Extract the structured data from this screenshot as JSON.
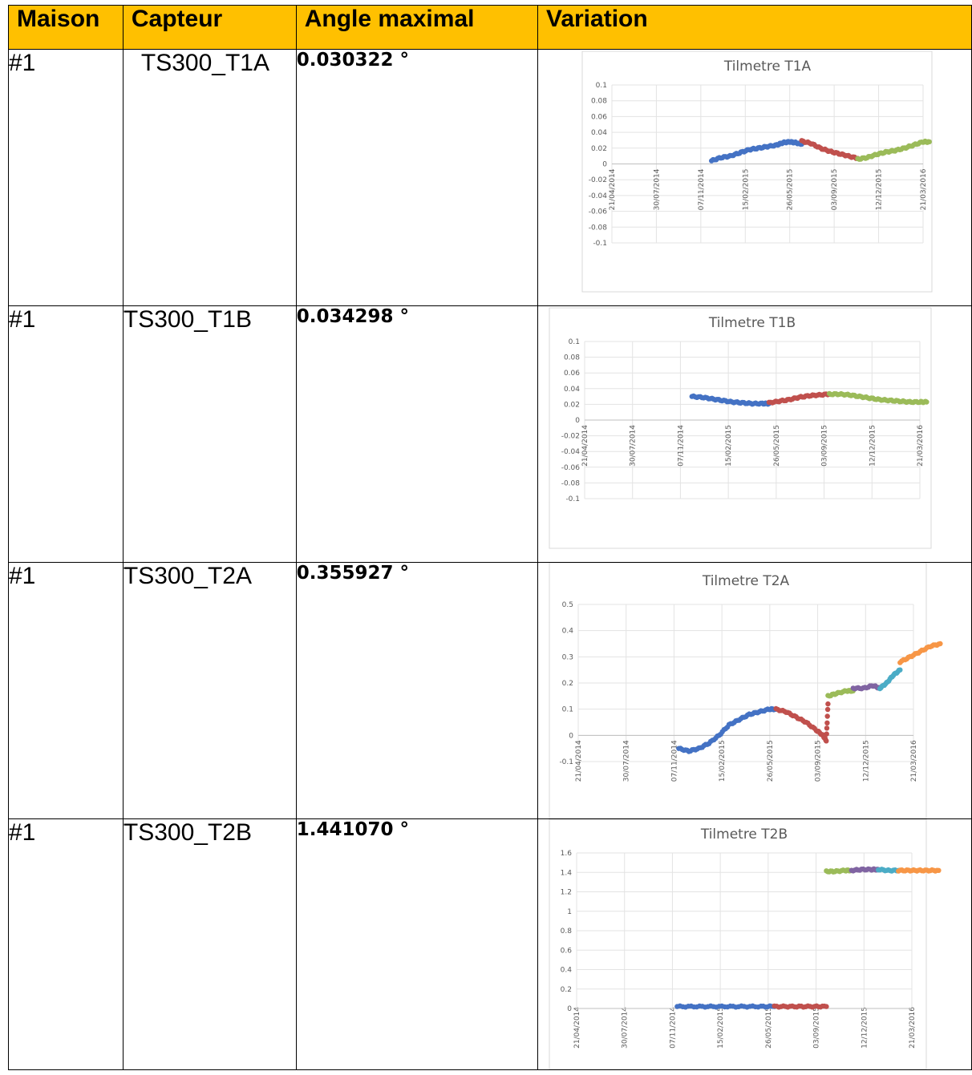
{
  "headers": {
    "maison": "Maison",
    "capteur": "Capteur",
    "angle": "Angle maximal",
    "variation": "Variation"
  },
  "rows": [
    {
      "maison": "#1",
      "capteur": "TS300_T1A",
      "angle": "0.030322 °"
    },
    {
      "maison": "#1",
      "capteur": "TS300_T1B",
      "angle": "0.034298 °"
    },
    {
      "maison": "#1",
      "capteur": "TS300_T2A",
      "angle": "0.355927 °"
    },
    {
      "maison": "#1",
      "capteur": "TS300_T2B",
      "angle": "1.441070 °"
    }
  ],
  "chart_data": [
    {
      "type": "scatter",
      "title": "Tilmetre T1A",
      "x_tick_labels": [
        "21/04/2014",
        "30/07/2014",
        "07/11/2014",
        "15/02/2015",
        "26/05/2015",
        "03/09/2015",
        "12/12/2015",
        "21/03/2016"
      ],
      "y_tick_labels": [
        "0.1",
        "0.08",
        "0.06",
        "0.04",
        "0.02",
        "0",
        "-0.02",
        "-0.04",
        "-0.06",
        "-0.08",
        "-0.1"
      ],
      "ylim": [
        -0.1,
        0.1
      ],
      "grid": true,
      "series": [
        {
          "color": "#4472c4",
          "points": [
            [
              0.32,
              0.004
            ],
            [
              0.35,
              0.008
            ],
            [
              0.38,
              0.01
            ],
            [
              0.41,
              0.014
            ],
            [
              0.44,
              0.018
            ],
            [
              0.47,
              0.02
            ],
            [
              0.5,
              0.022
            ],
            [
              0.53,
              0.024
            ],
            [
              0.55,
              0.027
            ],
            [
              0.57,
              0.028
            ],
            [
              0.59,
              0.027
            ],
            [
              0.61,
              0.025
            ]
          ]
        },
        {
          "color": "#c0504d",
          "points": [
            [
              0.61,
              0.029
            ],
            [
              0.64,
              0.026
            ],
            [
              0.67,
              0.02
            ],
            [
              0.7,
              0.016
            ],
            [
              0.73,
              0.013
            ],
            [
              0.76,
              0.01
            ],
            [
              0.79,
              0.007
            ]
          ]
        },
        {
          "color": "#9bbb59",
          "points": [
            [
              0.79,
              0.006
            ],
            [
              0.82,
              0.008
            ],
            [
              0.85,
              0.012
            ],
            [
              0.88,
              0.015
            ],
            [
              0.91,
              0.017
            ],
            [
              0.94,
              0.02
            ],
            [
              0.97,
              0.024
            ],
            [
              1.0,
              0.028
            ],
            [
              1.02,
              0.028
            ]
          ]
        }
      ]
    },
    {
      "type": "scatter",
      "title": "Tilmetre T1B",
      "x_tick_labels": [
        "21/04/2014",
        "30/07/2014",
        "07/11/2014",
        "15/02/2015",
        "26/05/2015",
        "03/09/2015",
        "12/12/2015",
        "21/03/2016"
      ],
      "y_tick_labels": [
        "0.1",
        "0.08",
        "0.06",
        "0.04",
        "0.02",
        "0",
        "-0.02",
        "-0.04",
        "-0.06",
        "-0.08",
        "-0.1"
      ],
      "ylim": [
        -0.1,
        0.1
      ],
      "grid": true,
      "series": [
        {
          "color": "#4472c4",
          "points": [
            [
              0.32,
              0.03
            ],
            [
              0.35,
              0.029
            ],
            [
              0.38,
              0.027
            ],
            [
              0.41,
              0.025
            ],
            [
              0.44,
              0.023
            ],
            [
              0.47,
              0.022
            ],
            [
              0.5,
              0.021
            ],
            [
              0.53,
              0.021
            ],
            [
              0.55,
              0.021
            ]
          ]
        },
        {
          "color": "#c0504d",
          "points": [
            [
              0.55,
              0.022
            ],
            [
              0.58,
              0.024
            ],
            [
              0.61,
              0.026
            ],
            [
              0.64,
              0.029
            ],
            [
              0.67,
              0.031
            ],
            [
              0.7,
              0.032
            ],
            [
              0.73,
              0.033
            ]
          ]
        },
        {
          "color": "#9bbb59",
          "points": [
            [
              0.73,
              0.033
            ],
            [
              0.76,
              0.033
            ],
            [
              0.79,
              0.032
            ],
            [
              0.82,
              0.03
            ],
            [
              0.85,
              0.028
            ],
            [
              0.88,
              0.026
            ],
            [
              0.91,
              0.025
            ],
            [
              0.94,
              0.024
            ],
            [
              0.97,
              0.023
            ],
            [
              1.0,
              0.023
            ],
            [
              1.02,
              0.023
            ]
          ]
        }
      ]
    },
    {
      "type": "scatter",
      "title": "Tilmetre T2A",
      "x_tick_labels": [
        "21/04/2014",
        "30/07/2014",
        "07/11/2014",
        "15/02/2015",
        "26/05/2015",
        "03/09/2015",
        "12/12/2015",
        "21/03/2016"
      ],
      "y_tick_labels": [
        "0.5",
        "0.4",
        "0.3",
        "0.2",
        "0.1",
        "0",
        "-0.1"
      ],
      "ylim": [
        -0.1,
        0.5
      ],
      "grid": true,
      "series": [
        {
          "color": "#4472c4",
          "points": [
            [
              0.3,
              -0.05
            ],
            [
              0.33,
              -0.06
            ],
            [
              0.36,
              -0.05
            ],
            [
              0.39,
              -0.03
            ],
            [
              0.42,
              0.0
            ],
            [
              0.45,
              0.04
            ],
            [
              0.48,
              0.06
            ],
            [
              0.51,
              0.08
            ],
            [
              0.54,
              0.09
            ],
            [
              0.57,
              0.1
            ],
            [
              0.59,
              0.1
            ]
          ]
        },
        {
          "color": "#c0504d",
          "points": [
            [
              0.59,
              0.1
            ],
            [
              0.62,
              0.09
            ],
            [
              0.65,
              0.07
            ],
            [
              0.68,
              0.05
            ],
            [
              0.71,
              0.02
            ],
            [
              0.73,
              0.0
            ],
            [
              0.74,
              -0.02
            ],
            [
              0.745,
              0.12
            ]
          ]
        },
        {
          "color": "#9bbb59",
          "points": [
            [
              0.745,
              0.15
            ],
            [
              0.77,
              0.16
            ],
            [
              0.8,
              0.17
            ],
            [
              0.82,
              0.17
            ]
          ]
        },
        {
          "color": "#8064a2",
          "points": [
            [
              0.82,
              0.18
            ],
            [
              0.85,
              0.18
            ],
            [
              0.88,
              0.19
            ],
            [
              0.9,
              0.18
            ]
          ]
        },
        {
          "color": "#4bacc6",
          "points": [
            [
              0.9,
              0.18
            ],
            [
              0.92,
              0.2
            ],
            [
              0.94,
              0.23
            ],
            [
              0.96,
              0.25
            ]
          ]
        },
        {
          "color": "#f79646",
          "points": [
            [
              0.96,
              0.28
            ],
            [
              0.99,
              0.3
            ],
            [
              1.02,
              0.32
            ],
            [
              1.05,
              0.34
            ],
            [
              1.08,
              0.35
            ]
          ]
        }
      ]
    },
    {
      "type": "scatter",
      "title": "Tilmetre T2B",
      "x_tick_labels": [
        "21/04/2014",
        "30/07/2014",
        "07/11/2014",
        "15/02/2015",
        "26/05/2015",
        "03/09/2015",
        "12/12/2015",
        "21/03/2016"
      ],
      "y_tick_labels": [
        "1.6",
        "1.4",
        "1.2",
        "1",
        "0.8",
        "0.6",
        "0.4",
        "0.2",
        "0"
      ],
      "ylim": [
        0,
        1.6
      ],
      "grid": true,
      "series": [
        {
          "color": "#4472c4",
          "points": [
            [
              0.3,
              0.02
            ],
            [
              0.35,
              0.02
            ],
            [
              0.4,
              0.02
            ],
            [
              0.45,
              0.02
            ],
            [
              0.5,
              0.02
            ],
            [
              0.55,
              0.02
            ],
            [
              0.59,
              0.02
            ]
          ]
        },
        {
          "color": "#c0504d",
          "points": [
            [
              0.59,
              0.02
            ],
            [
              0.63,
              0.02
            ],
            [
              0.67,
              0.02
            ],
            [
              0.71,
              0.02
            ],
            [
              0.745,
              0.02
            ]
          ]
        },
        {
          "color": "#9bbb59",
          "points": [
            [
              0.745,
              1.41
            ],
            [
              0.77,
              1.41
            ],
            [
              0.8,
              1.42
            ],
            [
              0.82,
              1.42
            ]
          ]
        },
        {
          "color": "#8064a2",
          "points": [
            [
              0.82,
              1.42
            ],
            [
              0.85,
              1.43
            ],
            [
              0.88,
              1.43
            ],
            [
              0.9,
              1.43
            ]
          ]
        },
        {
          "color": "#4bacc6",
          "points": [
            [
              0.9,
              1.43
            ],
            [
              0.93,
              1.42
            ],
            [
              0.96,
              1.42
            ]
          ]
        },
        {
          "color": "#f79646",
          "points": [
            [
              0.96,
              1.42
            ],
            [
              0.99,
              1.42
            ],
            [
              1.02,
              1.42
            ],
            [
              1.05,
              1.42
            ],
            [
              1.08,
              1.42
            ]
          ]
        }
      ]
    }
  ]
}
